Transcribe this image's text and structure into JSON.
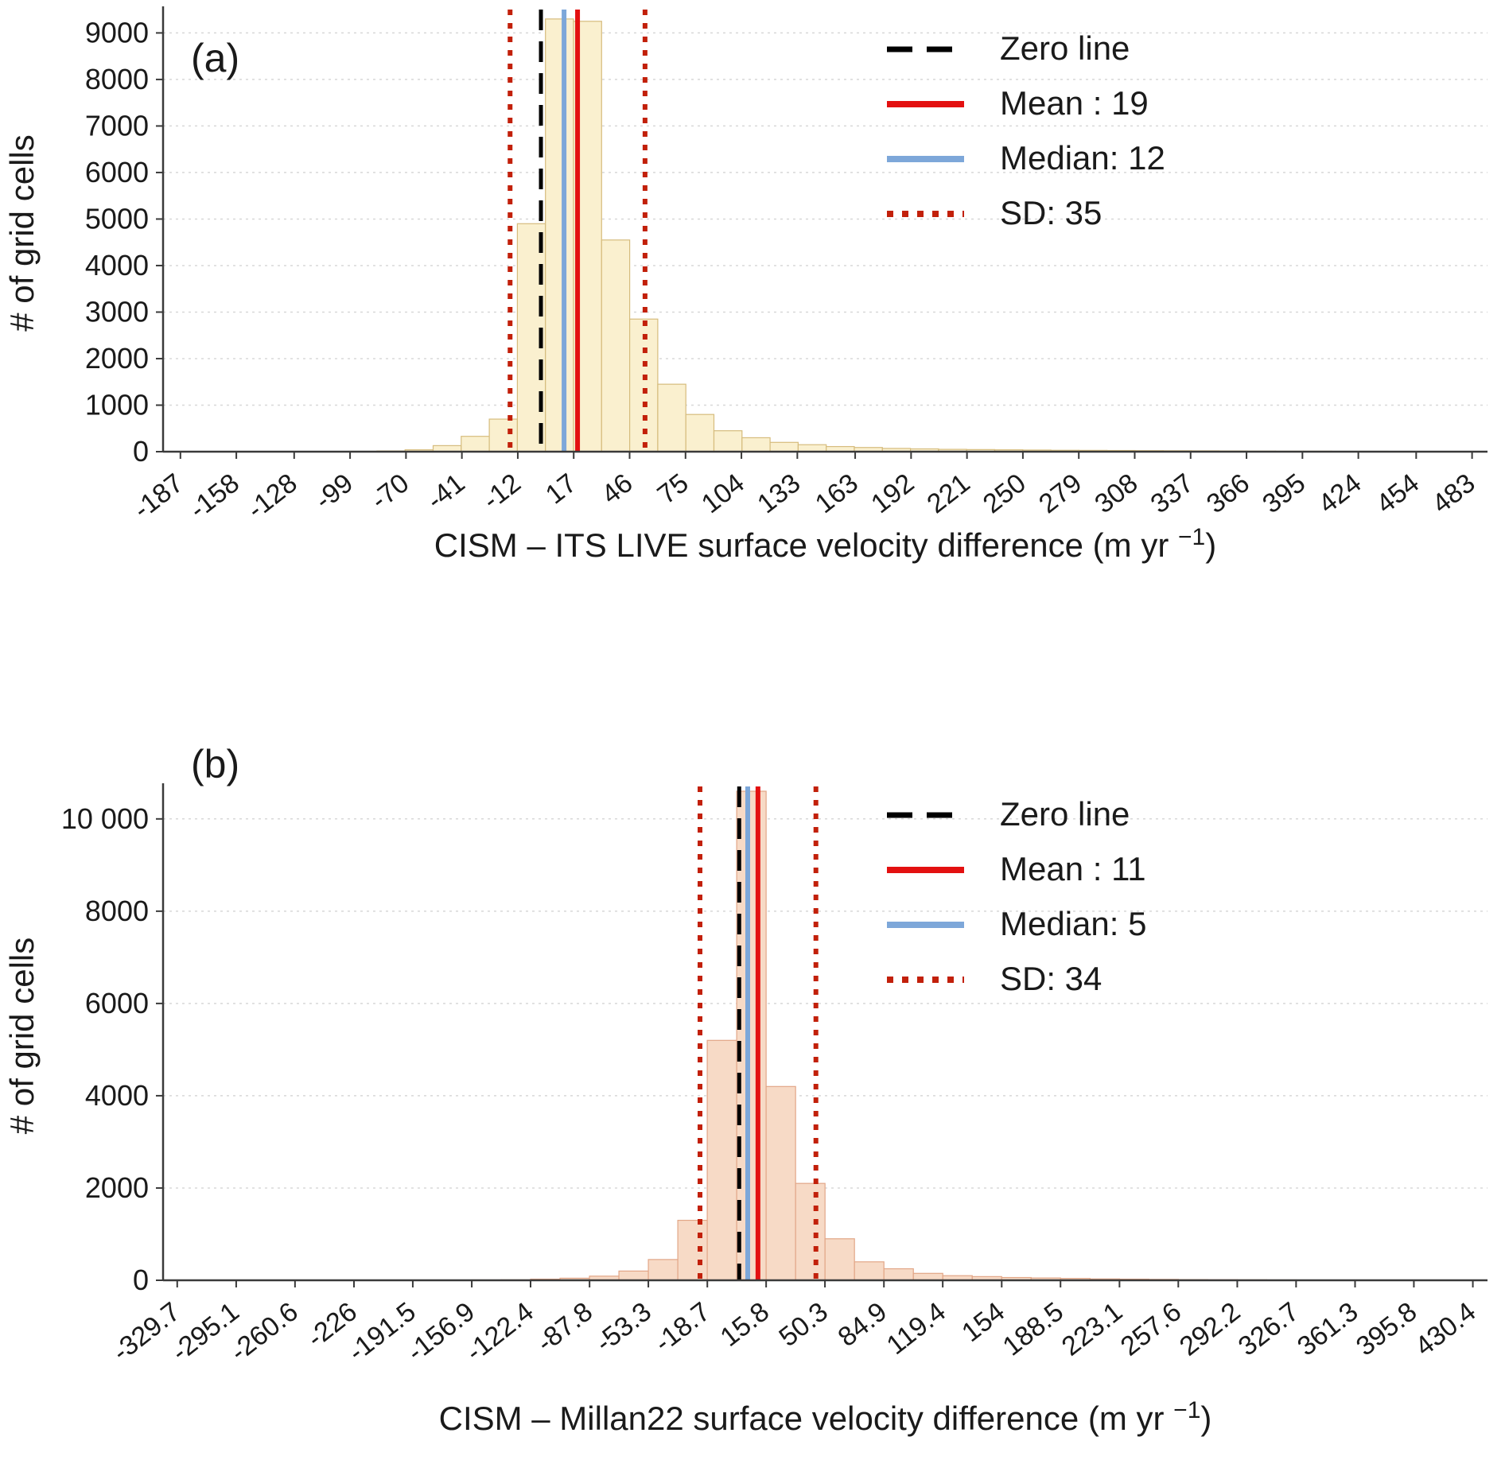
{
  "page": {
    "background": "#ffffff"
  },
  "chart_data": [
    {
      "type": "bar",
      "subtype": "histogram",
      "panel_label": "(a)",
      "ylabel": "# of grid cells",
      "xlabel": {
        "pre": "CISM – ITS LIVE surface velocity difference (m yr ",
        "sup": "−1",
        "post": ")"
      },
      "bar_fill": "#FAF0CF",
      "bar_stroke": "#D6BC7D",
      "bin_start": -187,
      "bin_width": 14.565,
      "counts": [
        3,
        3,
        3,
        4,
        4,
        5,
        8,
        15,
        40,
        130,
        330,
        700,
        4900,
        9300,
        9250,
        4550,
        2850,
        1450,
        800,
        450,
        300,
        200,
        150,
        110,
        90,
        70,
        60,
        50,
        45,
        40,
        35,
        30,
        28,
        25,
        22,
        20,
        18,
        15,
        12,
        10,
        10,
        8,
        8,
        5,
        5,
        5
      ],
      "x_ticks": [
        {
          "v": -187,
          "label": "-187"
        },
        {
          "v": -158,
          "label": "-158"
        },
        {
          "v": -128,
          "label": "-128"
        },
        {
          "v": -99,
          "label": "-99"
        },
        {
          "v": -70,
          "label": "-70"
        },
        {
          "v": -41,
          "label": "-41"
        },
        {
          "v": -12,
          "label": "-12"
        },
        {
          "v": 17,
          "label": "17"
        },
        {
          "v": 46,
          "label": "46"
        },
        {
          "v": 75,
          "label": "75"
        },
        {
          "v": 104,
          "label": "104"
        },
        {
          "v": 133,
          "label": "133"
        },
        {
          "v": 163,
          "label": "163"
        },
        {
          "v": 192,
          "label": "192"
        },
        {
          "v": 221,
          "label": "221"
        },
        {
          "v": 250,
          "label": "250"
        },
        {
          "v": 279,
          "label": "279"
        },
        {
          "v": 308,
          "label": "308"
        },
        {
          "v": 337,
          "label": "337"
        },
        {
          "v": 366,
          "label": "366"
        },
        {
          "v": 395,
          "label": "395"
        },
        {
          "v": 424,
          "label": "424"
        },
        {
          "v": 454,
          "label": "454"
        },
        {
          "v": 483,
          "label": "483"
        }
      ],
      "y_ticks": [
        {
          "v": 0,
          "label": "0"
        },
        {
          "v": 1000,
          "label": "1000"
        },
        {
          "v": 2000,
          "label": "2000"
        },
        {
          "v": 3000,
          "label": "3000"
        },
        {
          "v": 4000,
          "label": "4000"
        },
        {
          "v": 5000,
          "label": "5000"
        },
        {
          "v": 6000,
          "label": "6000"
        },
        {
          "v": 7000,
          "label": "7000"
        },
        {
          "v": 8000,
          "label": "8000"
        },
        {
          "v": 9000,
          "label": "9000"
        }
      ],
      "xlim": [
        -196,
        491
      ],
      "ylim": [
        0,
        9400
      ],
      "stats": {
        "mean": 19,
        "median": 12,
        "sd": 35
      },
      "lines": {
        "zero": 0,
        "mean": 19,
        "median": 12,
        "sd_lines": [
          -16,
          54
        ]
      },
      "legend": [
        {
          "style": "dashed-black",
          "label": "Zero line"
        },
        {
          "style": "solid-red",
          "label": "Mean : 19"
        },
        {
          "style": "solid-blue",
          "label": "Median: 12"
        },
        {
          "style": "dotted-red",
          "label": "SD: 35"
        }
      ],
      "colors": {
        "zero": "#000000",
        "mean": "#E31010",
        "median": "#7DA7D9",
        "sd": "#C2200A",
        "grid": "#D8D8D8",
        "axis": "#3A3A3A",
        "text": "#1A1A1A"
      }
    },
    {
      "type": "bar",
      "subtype": "histogram",
      "panel_label": "(b)",
      "ylabel": "# of grid cells",
      "xlabel": {
        "pre": "CISM – Millan22 surface velocity difference (m yr ",
        "sup": "−1",
        "post": ")"
      },
      "bar_fill": "#F7DAC6",
      "bar_stroke": "#E2A687",
      "bin_start": -329.7,
      "bin_width": 17.275,
      "counts": [
        3,
        3,
        3,
        3,
        4,
        4,
        4,
        5,
        5,
        6,
        8,
        10,
        25,
        45,
        90,
        200,
        450,
        1300,
        5200,
        11000,
        4200,
        2100,
        900,
        400,
        250,
        150,
        100,
        80,
        60,
        50,
        40,
        30,
        25,
        20,
        15,
        12,
        10,
        8,
        6,
        5,
        5,
        4,
        4,
        4
      ],
      "x_ticks": [
        {
          "v": -329.7,
          "label": "-329.7"
        },
        {
          "v": -295.1,
          "label": "-295.1"
        },
        {
          "v": -260.6,
          "label": "-260.6"
        },
        {
          "v": -226,
          "label": "-226"
        },
        {
          "v": -191.5,
          "label": "-191.5"
        },
        {
          "v": -156.9,
          "label": "-156.9"
        },
        {
          "v": -122.4,
          "label": "-122.4"
        },
        {
          "v": -87.8,
          "label": "-87.8"
        },
        {
          "v": -53.3,
          "label": "-53.3"
        },
        {
          "v": -18.7,
          "label": "-18.7"
        },
        {
          "v": 15.8,
          "label": "15.8"
        },
        {
          "v": 50.3,
          "label": "50.3"
        },
        {
          "v": 84.9,
          "label": "84.9"
        },
        {
          "v": 119.4,
          "label": "119.4"
        },
        {
          "v": 154,
          "label": "154"
        },
        {
          "v": 188.5,
          "label": "188.5"
        },
        {
          "v": 223.1,
          "label": "223.1"
        },
        {
          "v": 257.6,
          "label": "257.6"
        },
        {
          "v": 292.2,
          "label": "292.2"
        },
        {
          "v": 326.7,
          "label": "326.7"
        },
        {
          "v": 361.3,
          "label": "361.3"
        },
        {
          "v": 395.8,
          "label": "395.8"
        },
        {
          "v": 430.4,
          "label": "430.4"
        }
      ],
      "y_ticks": [
        {
          "v": 0,
          "label": "0"
        },
        {
          "v": 2000,
          "label": "2000"
        },
        {
          "v": 4000,
          "label": "4000"
        },
        {
          "v": 6000,
          "label": "6000"
        },
        {
          "v": 8000,
          "label": "8000"
        },
        {
          "v": 10000,
          "label": "10 000"
        }
      ],
      "xlim": [
        -338,
        439
      ],
      "ylim": [
        0,
        10600
      ],
      "stats": {
        "mean": 11,
        "median": 5,
        "sd": 34
      },
      "lines": {
        "zero": 0,
        "mean": 11,
        "median": 5,
        "sd_lines": [
          -23,
          45
        ]
      },
      "legend": [
        {
          "style": "dashed-black",
          "label": "Zero line"
        },
        {
          "style": "solid-red",
          "label": "Mean : 11"
        },
        {
          "style": "solid-blue",
          "label": "Median: 5"
        },
        {
          "style": "dotted-red",
          "label": "SD: 34"
        }
      ],
      "colors": {
        "zero": "#000000",
        "mean": "#E31010",
        "median": "#7DA7D9",
        "sd": "#C2200A",
        "grid": "#D8D8D8",
        "axis": "#3A3A3A",
        "text": "#1A1A1A"
      }
    }
  ]
}
